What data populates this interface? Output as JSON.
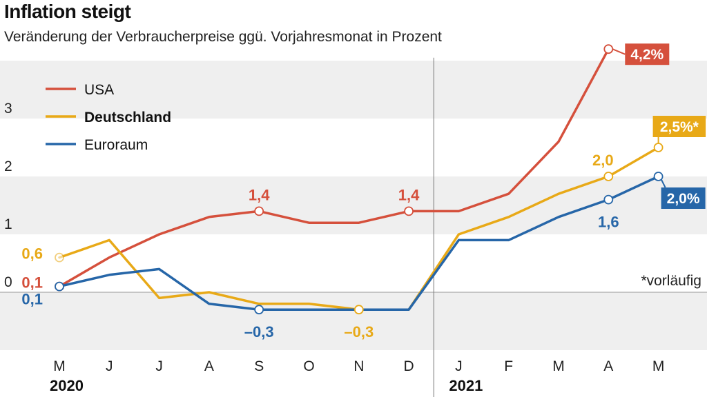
{
  "title": "Inflation steigt",
  "subtitle": "Veränderung der Verbraucherpreise ggü. Vorjahresmonat in Prozent",
  "note": "*vorläufig",
  "colors": {
    "USA": "#d5503c",
    "Deutschland": "#e8a917",
    "Euroraum": "#2666a8",
    "band": "#efefef"
  },
  "chart_data": {
    "type": "line",
    "x": [
      "M",
      "J",
      "J",
      "A",
      "S",
      "O",
      "N",
      "D",
      "J",
      "F",
      "M",
      "A",
      "M"
    ],
    "year_labels": [
      {
        "label": "2020",
        "index": 0
      },
      {
        "label": "2021",
        "index": 8
      }
    ],
    "y_ticks": [
      0,
      1,
      2,
      3
    ],
    "ylim": [
      -1,
      4
    ],
    "grid": "alternating horizontal bands",
    "legend": "top-left",
    "series": [
      {
        "name": "USA",
        "color": "#d5503c",
        "bold": false,
        "values": [
          0.1,
          0.6,
          1.0,
          1.3,
          1.4,
          1.2,
          1.2,
          1.4,
          1.4,
          1.7,
          2.6,
          4.2,
          null
        ]
      },
      {
        "name": "Deutschland",
        "color": "#e8a917",
        "bold": true,
        "values": [
          0.6,
          0.9,
          -0.1,
          0.0,
          -0.2,
          -0.2,
          -0.3,
          -0.3,
          1.0,
          1.3,
          1.7,
          2.0,
          2.5
        ]
      },
      {
        "name": "Euroraum",
        "color": "#2666a8",
        "bold": false,
        "values": [
          0.1,
          0.3,
          0.4,
          -0.2,
          -0.3,
          -0.3,
          -0.3,
          -0.3,
          0.9,
          0.9,
          1.3,
          1.6,
          2.0
        ]
      }
    ],
    "markers": [
      {
        "series": "Deutschland",
        "index": 0,
        "faded": true
      },
      {
        "series": "USA",
        "index": 0
      },
      {
        "series": "Euroraum",
        "index": 0
      },
      {
        "series": "USA",
        "index": 4
      },
      {
        "series": "USA",
        "index": 7
      },
      {
        "series": "USA",
        "index": 11
      },
      {
        "series": "Euroraum",
        "index": 4
      },
      {
        "series": "Deutschland",
        "index": 6
      },
      {
        "series": "Deutschland",
        "index": 11
      },
      {
        "series": "Deutschland",
        "index": 12
      },
      {
        "series": "Euroraum",
        "index": 11
      },
      {
        "series": "Euroraum",
        "index": 12
      }
    ],
    "annotations": [
      {
        "text": "0,6",
        "series": "Deutschland",
        "index": 0,
        "pos": "left"
      },
      {
        "text": "0,1",
        "series": "USA",
        "index": 0,
        "pos": "left"
      },
      {
        "text": "0,1",
        "series": "Euroraum",
        "index": 0,
        "pos": "left-below"
      },
      {
        "text": "1,4",
        "series": "USA",
        "index": 4,
        "pos": "above"
      },
      {
        "text": "1,4",
        "series": "USA",
        "index": 7,
        "pos": "above"
      },
      {
        "text": "–0,3",
        "series": "Euroraum",
        "index": 4,
        "pos": "below"
      },
      {
        "text": "–0,3",
        "series": "Deutschland",
        "index": 6,
        "pos": "below"
      },
      {
        "text": "2,0",
        "series": "Deutschland",
        "index": 11,
        "pos": "above-left"
      },
      {
        "text": "1,6",
        "series": "Euroraum",
        "index": 11,
        "pos": "below"
      },
      {
        "text": "4,2%",
        "series": "USA",
        "index": 11,
        "pos": "box"
      },
      {
        "text": "2,5%*",
        "series": "Deutschland",
        "index": 12,
        "pos": "box"
      },
      {
        "text": "2,0%",
        "series": "Euroraum",
        "index": 12,
        "pos": "box"
      }
    ]
  }
}
